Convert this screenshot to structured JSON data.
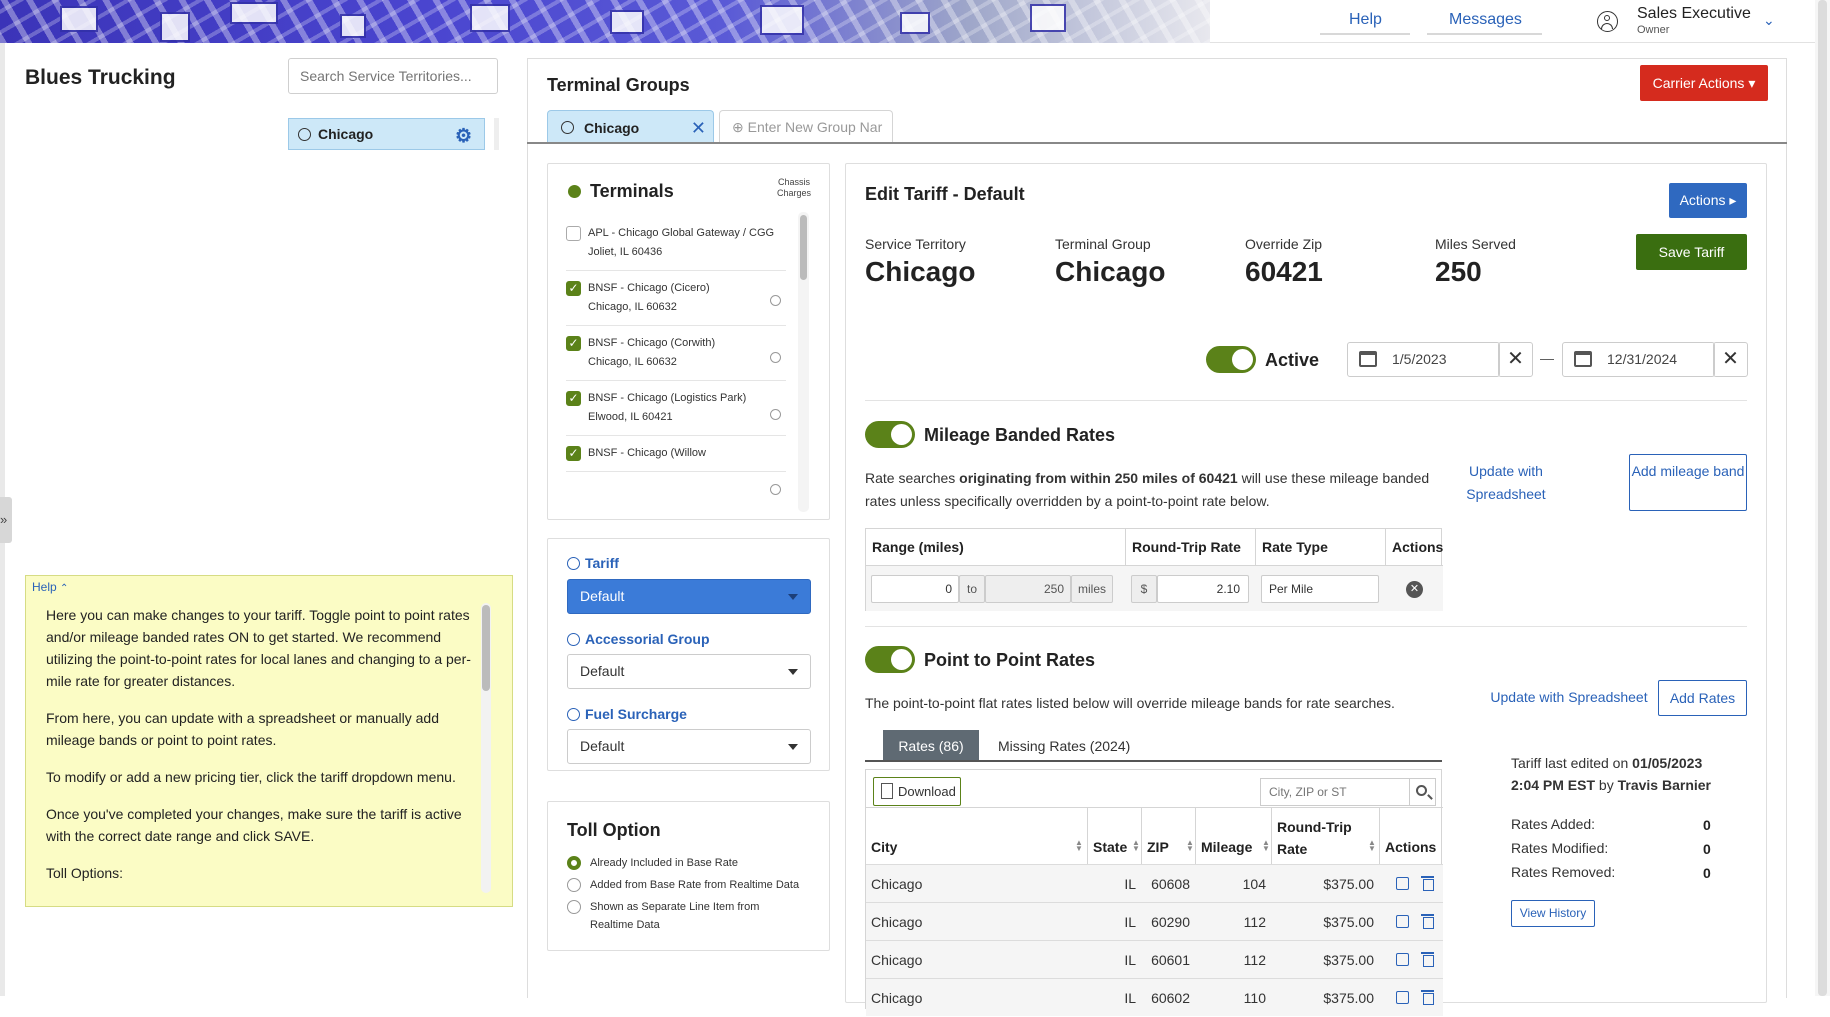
{
  "topbar": {
    "help_label": "Help",
    "messages_label": "Messages",
    "user_role": "Sales Executive",
    "user_sub": "Owner"
  },
  "sidebar": {
    "brand": "Blues Trucking",
    "search_placeholder": "Search Service Territories...",
    "territory": "Chicago",
    "collapse_glyph": "»",
    "help": {
      "title": "Help",
      "paragraphs": [
        "Here you can make changes to your tariff. Toggle point to point rates and/or mileage banded rates ON to get started. We recommend utilizing the point-to-point rates for local lanes and changing to a per-mile rate for greater distances.",
        "From here, you can update with a spreadsheet or manually add mileage bands or point to point rates.",
        "To modify or add a new pricing tier, click the tariff dropdown menu.",
        "Once you've completed your changes, make sure the tariff is active with the correct date range and click SAVE.",
        "Toll Options:"
      ]
    }
  },
  "main": {
    "title": "Terminal Groups",
    "carrier_actions": "Carrier Actions ▾",
    "group_tab": "Chicago",
    "new_group_placeholder": "⊕ Enter New Group Nar"
  },
  "terminals": {
    "title": "Terminals",
    "chassis_label_1": "Chassis",
    "chassis_label_2": "Charges",
    "items": [
      {
        "name": "APL - Chicago Global Gateway / CGG",
        "addr": "Joliet, IL 60436",
        "checked": false
      },
      {
        "name": "BNSF - Chicago (Cicero)",
        "addr": "Chicago, IL 60632",
        "checked": true
      },
      {
        "name": "BNSF - Chicago (Corwith)",
        "addr": "Chicago, IL 60632",
        "checked": true
      },
      {
        "name": "BNSF - Chicago (Logistics Park)",
        "addr": "Elwood, IL 60421",
        "checked": true
      },
      {
        "name": "BNSF - Chicago (Willow",
        "addr": "",
        "checked": true
      }
    ]
  },
  "selects": {
    "tariff_label": "Tariff",
    "tariff_value": "Default",
    "accessorial_label": "Accessorial Group",
    "accessorial_value": "Default",
    "fuel_label": "Fuel Surcharge",
    "fuel_value": "Default"
  },
  "toll": {
    "title": "Toll Option",
    "options": [
      {
        "label": "Already Included in Base Rate",
        "selected": true
      },
      {
        "label": "Added from Base Rate from Realtime Data",
        "selected": false
      },
      {
        "label": "Shown as Separate Line Item from Realtime Data",
        "selected": false
      }
    ]
  },
  "edit": {
    "title": "Edit Tariff - Default",
    "actions": "Actions ▸",
    "save": "Save Tariff",
    "stats": [
      {
        "label": "Service Territory",
        "value": "Chicago"
      },
      {
        "label": "Terminal Group",
        "value": "Chicago"
      },
      {
        "label": "Override Zip",
        "value": "60421"
      },
      {
        "label": "Miles Served",
        "value": "250"
      }
    ],
    "active_label": "Active",
    "start_date": "1/5/2023",
    "end_date": "12/31/2024",
    "date_dash": "—",
    "clear_glyph": "✕"
  },
  "mileage": {
    "title": "Mileage Banded Rates",
    "desc_pre": "Rate searches ",
    "desc_bold": "originating from within 250 miles of 60421",
    "desc_post": " will use these mileage banded rates unless specifically overridden by a point-to-point rate below.",
    "update_link": "Update with Spreadsheet",
    "add_band": "Add mileage band",
    "headers": [
      "Range (miles)",
      "Round-Trip Rate",
      "Rate Type",
      "Actions"
    ],
    "row": {
      "from": "0",
      "to_label": "to",
      "to": "250",
      "miles": "miles",
      "currency": "$",
      "rate": "2.10",
      "type": "Per Mile",
      "remove_glyph": "✕"
    }
  },
  "p2p": {
    "title": "Point to Point Rates",
    "desc": "The point-to-point flat rates listed below will override mileage bands for rate searches.",
    "update_link": "Update with Spreadsheet",
    "add_rates": "Add Rates",
    "tab_rates": "Rates (86)",
    "tab_missing": "Missing Rates (2024)",
    "download": "Download",
    "search_placeholder": "City, ZIP or ST",
    "headers": [
      "City",
      "State",
      "ZIP",
      "Mileage",
      "Round-Trip Rate",
      "Actions"
    ],
    "rows": [
      {
        "city": "Chicago",
        "state": "IL",
        "zip": "60608",
        "mileage": "104",
        "rate": "$375.00"
      },
      {
        "city": "Chicago",
        "state": "IL",
        "zip": "60290",
        "mileage": "112",
        "rate": "$375.00"
      },
      {
        "city": "Chicago",
        "state": "IL",
        "zip": "60601",
        "mileage": "112",
        "rate": "$375.00"
      },
      {
        "city": "Chicago",
        "state": "IL",
        "zip": "60602",
        "mileage": "110",
        "rate": "$375.00"
      }
    ]
  },
  "summary": {
    "edited_pre": "Tariff last edited on ",
    "edited_date": "01/05/2023",
    "edited_time": "2:04 PM EST",
    "edited_by": " by ",
    "edited_user": "Travis Barnier",
    "added_label": "Rates Added:",
    "added": "0",
    "modified_label": "Rates Modified:",
    "modified": "0",
    "removed_label": "Rates Removed:",
    "removed": "0",
    "history": "View History"
  },
  "colors": {
    "accent_blue": "#2a62b8",
    "green": "#5b8219",
    "danger": "#d52b1e",
    "help_bg": "#fbfcc5"
  }
}
